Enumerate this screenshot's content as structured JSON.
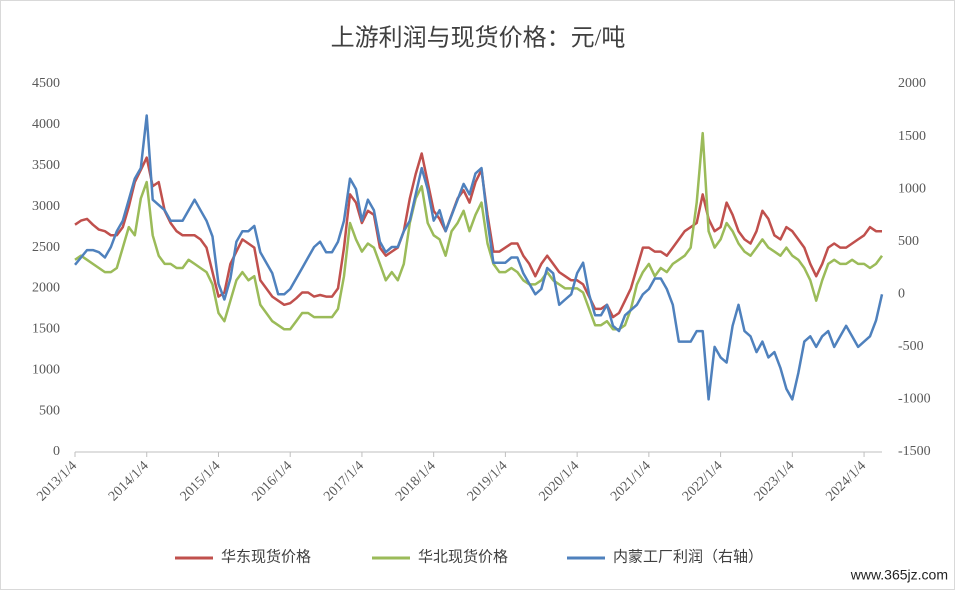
{
  "chart_data": {
    "type": "line",
    "title": "上游利润与现货价格：元/吨",
    "watermark": "www.365jz.com",
    "x": [
      "2013-01",
      "2013-02",
      "2013-03",
      "2013-04",
      "2013-05",
      "2013-06",
      "2013-07",
      "2013-08",
      "2013-09",
      "2013-10",
      "2013-11",
      "2013-12",
      "2014-01",
      "2014-02",
      "2014-03",
      "2014-04",
      "2014-05",
      "2014-06",
      "2014-07",
      "2014-08",
      "2014-09",
      "2014-10",
      "2014-11",
      "2014-12",
      "2015-01",
      "2015-02",
      "2015-03",
      "2015-04",
      "2015-05",
      "2015-06",
      "2015-07",
      "2015-08",
      "2015-09",
      "2015-10",
      "2015-11",
      "2015-12",
      "2016-01",
      "2016-02",
      "2016-03",
      "2016-04",
      "2016-05",
      "2016-06",
      "2016-07",
      "2016-08",
      "2016-09",
      "2016-10",
      "2016-11",
      "2016-12",
      "2017-01",
      "2017-02",
      "2017-03",
      "2017-04",
      "2017-05",
      "2017-06",
      "2017-07",
      "2017-08",
      "2017-09",
      "2017-10",
      "2017-11",
      "2017-12",
      "2018-01",
      "2018-02",
      "2018-03",
      "2018-04",
      "2018-05",
      "2018-06",
      "2018-07",
      "2018-08",
      "2018-09",
      "2018-10",
      "2018-11",
      "2018-12",
      "2019-01",
      "2019-02",
      "2019-03",
      "2019-04",
      "2019-05",
      "2019-06",
      "2019-07",
      "2019-08",
      "2019-09",
      "2019-10",
      "2019-11",
      "2019-12",
      "2020-01",
      "2020-02",
      "2020-03",
      "2020-04",
      "2020-05",
      "2020-06",
      "2020-07",
      "2020-08",
      "2020-09",
      "2020-10",
      "2020-11",
      "2020-12",
      "2021-01",
      "2021-02",
      "2021-03",
      "2021-04",
      "2021-05",
      "2021-06",
      "2021-07",
      "2021-08",
      "2021-09",
      "2021-10",
      "2021-11",
      "2021-12",
      "2022-01",
      "2022-02",
      "2022-03",
      "2022-04",
      "2022-05",
      "2022-06",
      "2022-07",
      "2022-08",
      "2022-09",
      "2022-10",
      "2022-11",
      "2022-12",
      "2023-01",
      "2023-02",
      "2023-03",
      "2023-04",
      "2023-05",
      "2023-06",
      "2023-07",
      "2023-08",
      "2023-09",
      "2023-10",
      "2023-11",
      "2023-12",
      "2024-01",
      "2024-02",
      "2024-03",
      "2024-04"
    ],
    "xlim": [
      "2013-01",
      "2024-04"
    ],
    "xticks": [
      {
        "value": "2013-01",
        "label": "2013/1/4"
      },
      {
        "value": "2014-01",
        "label": "2014/1/4"
      },
      {
        "value": "2015-01",
        "label": "2015/1/4"
      },
      {
        "value": "2016-01",
        "label": "2016/1/4"
      },
      {
        "value": "2017-01",
        "label": "2017/1/4"
      },
      {
        "value": "2018-01",
        "label": "2018/1/4"
      },
      {
        "value": "2019-01",
        "label": "2019/1/4"
      },
      {
        "value": "2020-01",
        "label": "2020/1/4"
      },
      {
        "value": "2021-01",
        "label": "2021/1/4"
      },
      {
        "value": "2022-01",
        "label": "2022/1/4"
      },
      {
        "value": "2023-01",
        "label": "2023/1/4"
      },
      {
        "value": "2024-01",
        "label": "2024/1/4"
      }
    ],
    "ylim": [
      0,
      4500
    ],
    "yticks": [
      0,
      500,
      1000,
      1500,
      2000,
      2500,
      3000,
      3500,
      4000,
      4500
    ],
    "y2lim": [
      -1500,
      2000
    ],
    "y2ticks": [
      -1500,
      -1000,
      -500,
      0,
      500,
      1000,
      1500,
      2000
    ],
    "grid": false,
    "legend": "bottom",
    "series": [
      {
        "name": "华东现货价格",
        "color": "#c0504d",
        "values": [
          2780,
          2830,
          2850,
          2780,
          2720,
          2700,
          2650,
          2650,
          2750,
          3000,
          3300,
          3450,
          3600,
          3250,
          3300,
          2950,
          2800,
          2700,
          2650,
          2650,
          2650,
          2600,
          2500,
          2200,
          1900,
          1950,
          2300,
          2450,
          2600,
          2550,
          2500,
          2100,
          2000,
          1900,
          1850,
          1800,
          1820,
          1880,
          1950,
          1950,
          1900,
          1920,
          1900,
          1900,
          2000,
          2500,
          3150,
          3050,
          2800,
          2950,
          2900,
          2500,
          2400,
          2450,
          2500,
          2700,
          3100,
          3400,
          3650,
          3300,
          2950,
          2850,
          2700,
          2900,
          3100,
          3200,
          3050,
          3300,
          3450,
          2900,
          2450,
          2450,
          2500,
          2550,
          2550,
          2400,
          2300,
          2150,
          2300,
          2400,
          2300,
          2200,
          2150,
          2100,
          2100,
          2050,
          1900,
          1750,
          1750,
          1800,
          1650,
          1700,
          1850,
          2000,
          2250,
          2500,
          2500,
          2450,
          2450,
          2400,
          2500,
          2600,
          2700,
          2750,
          2800,
          3150,
          2850,
          2700,
          2750,
          3050,
          2900,
          2700,
          2600,
          2550,
          2700,
          2950,
          2850,
          2650,
          2600,
          2750,
          2700,
          2600,
          2500,
          2300,
          2150,
          2300,
          2500,
          2550,
          2500,
          2500,
          2550,
          2600,
          2650,
          2750,
          2700,
          2700
        ]
      },
      {
        "name": "华北现货价格",
        "color": "#9bbb59",
        "values": [
          2350,
          2400,
          2350,
          2300,
          2250,
          2200,
          2200,
          2250,
          2500,
          2750,
          2650,
          3100,
          3300,
          2650,
          2400,
          2300,
          2300,
          2250,
          2250,
          2350,
          2300,
          2250,
          2200,
          2050,
          1700,
          1600,
          1850,
          2100,
          2200,
          2100,
          2150,
          1800,
          1700,
          1600,
          1550,
          1500,
          1500,
          1600,
          1700,
          1700,
          1650,
          1650,
          1650,
          1650,
          1750,
          2150,
          2800,
          2600,
          2450,
          2550,
          2500,
          2300,
          2100,
          2200,
          2100,
          2300,
          2800,
          3100,
          3250,
          2800,
          2650,
          2600,
          2400,
          2700,
          2800,
          2950,
          2700,
          2900,
          3050,
          2550,
          2300,
          2200,
          2200,
          2250,
          2200,
          2100,
          2050,
          2050,
          2100,
          2200,
          2100,
          2050,
          2000,
          2000,
          2000,
          1950,
          1750,
          1550,
          1550,
          1600,
          1500,
          1500,
          1550,
          1750,
          2050,
          2200,
          2300,
          2150,
          2250,
          2200,
          2300,
          2350,
          2400,
          2500,
          3050,
          3900,
          2700,
          2500,
          2600,
          2800,
          2700,
          2550,
          2450,
          2400,
          2500,
          2600,
          2500,
          2450,
          2400,
          2500,
          2400,
          2350,
          2250,
          2100,
          1850,
          2100,
          2300,
          2350,
          2300,
          2300,
          2350,
          2300,
          2300,
          2250,
          2300,
          2400
        ]
      },
      {
        "name": "内蒙工厂利润（右轴）",
        "color": "#4f81bd",
        "axis": "y2",
        "values": [
          280,
          350,
          420,
          420,
          400,
          350,
          450,
          600,
          700,
          900,
          1100,
          1200,
          1700,
          900,
          850,
          800,
          700,
          700,
          700,
          800,
          900,
          800,
          700,
          550,
          100,
          -50,
          150,
          500,
          600,
          600,
          650,
          400,
          300,
          200,
          0,
          0,
          50,
          150,
          250,
          350,
          450,
          500,
          400,
          400,
          500,
          700,
          1100,
          1000,
          700,
          900,
          800,
          500,
          400,
          450,
          450,
          600,
          700,
          950,
          1200,
          1000,
          700,
          800,
          600,
          750,
          900,
          1050,
          950,
          1150,
          1200,
          700,
          300,
          300,
          300,
          350,
          350,
          200,
          100,
          0,
          50,
          250,
          200,
          -100,
          -50,
          0,
          200,
          300,
          0,
          -200,
          -200,
          -100,
          -300,
          -350,
          -200,
          -150,
          -100,
          0,
          50,
          150,
          150,
          50,
          -100,
          -450,
          -450,
          -450,
          -350,
          -350,
          -1000,
          -500,
          -600,
          -650,
          -300,
          -100,
          -350,
          -400,
          -550,
          -450,
          -600,
          -550,
          -700,
          -900,
          -1000,
          -750,
          -450,
          -400,
          -500,
          -400,
          -350,
          -500,
          -400,
          -300,
          -400,
          -500,
          -450,
          -400,
          -250,
          0
        ]
      }
    ]
  }
}
